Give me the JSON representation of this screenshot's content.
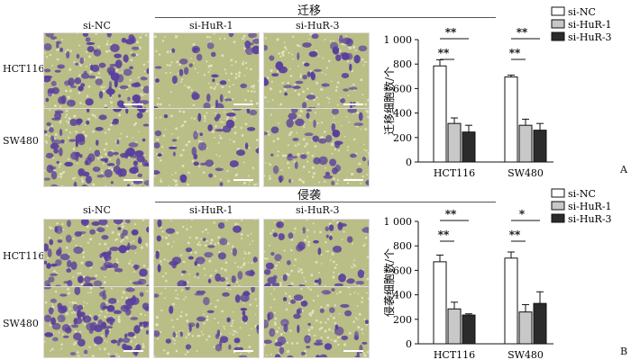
{
  "figure": {
    "sections": [
      {
        "title": "迁移",
        "letter": "A",
        "columns": [
          "si-NC",
          "si-HuR-1",
          "si-HuR-3"
        ],
        "rows": [
          "HCT116",
          "SW480"
        ]
      },
      {
        "title": "侵袭",
        "letter": "B",
        "columns": [
          "si-NC",
          "si-HuR-1",
          "si-HuR-3"
        ],
        "rows": [
          "HCT116",
          "SW480"
        ]
      }
    ],
    "colors": {
      "stain": "#5a3f9c",
      "background": "#b9bd86",
      "bar_nc": "#ffffff",
      "bar_hur1": "#c8c8c8",
      "bar_hur3": "#2b2b2b"
    }
  },
  "chart_data": [
    {
      "type": "bar",
      "ylabel": "迁移细胞数/个",
      "ylim": [
        0,
        1000
      ],
      "yticks": [
        "0",
        "200",
        "400",
        "600",
        "800",
        "1 000"
      ],
      "categories": [
        "HCT116",
        "SW480"
      ],
      "series": [
        {
          "name": "si-NC",
          "values": [
            785,
            695
          ],
          "errors": [
            50,
            15
          ]
        },
        {
          "name": "si-HuR-1",
          "values": [
            315,
            300
          ],
          "errors": [
            45,
            50
          ]
        },
        {
          "name": "si-HuR-3",
          "values": [
            245,
            260
          ],
          "errors": [
            55,
            55
          ]
        }
      ],
      "significance": [
        {
          "category": "HCT116",
          "from": "si-NC",
          "to": "si-HuR-1",
          "label": "**"
        },
        {
          "category": "HCT116",
          "from": "si-NC",
          "to": "si-HuR-3",
          "label": "**"
        },
        {
          "category": "SW480",
          "from": "si-NC",
          "to": "si-HuR-1",
          "label": "**"
        },
        {
          "category": "SW480",
          "from": "si-NC",
          "to": "si-HuR-3",
          "label": "**"
        }
      ],
      "legend_position": "top-right"
    },
    {
      "type": "bar",
      "ylabel": "侵袭细胞数/个",
      "ylim": [
        0,
        1000
      ],
      "yticks": [
        "0",
        "200",
        "400",
        "600",
        "800",
        "1 000"
      ],
      "categories": [
        "HCT116",
        "SW480"
      ],
      "series": [
        {
          "name": "si-NC",
          "values": [
            670,
            700
          ],
          "errors": [
            55,
            50
          ]
        },
        {
          "name": "si-HuR-1",
          "values": [
            285,
            260
          ],
          "errors": [
            55,
            60
          ]
        },
        {
          "name": "si-HuR-3",
          "values": [
            235,
            330
          ],
          "errors": [
            10,
            95
          ]
        }
      ],
      "significance": [
        {
          "category": "HCT116",
          "from": "si-NC",
          "to": "si-HuR-1",
          "label": "**"
        },
        {
          "category": "HCT116",
          "from": "si-NC",
          "to": "si-HuR-3",
          "label": "**"
        },
        {
          "category": "SW480",
          "from": "si-NC",
          "to": "si-HuR-1",
          "label": "**"
        },
        {
          "category": "SW480",
          "from": "si-NC",
          "to": "si-HuR-3",
          "label": "*"
        }
      ],
      "legend_position": "top-right"
    }
  ]
}
